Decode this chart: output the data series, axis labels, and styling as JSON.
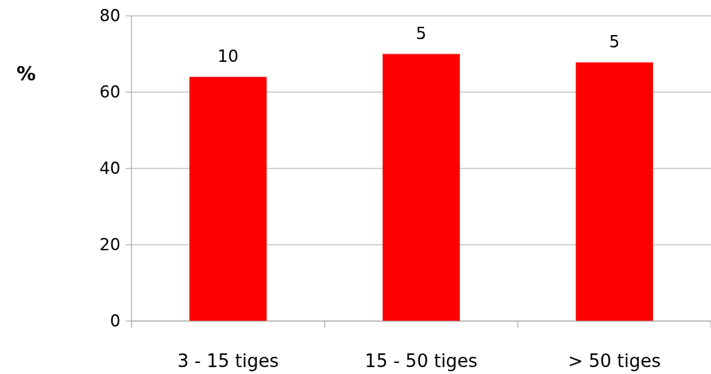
{
  "chart_data": {
    "type": "bar",
    "ylabel": "%",
    "categories": [
      "3 - 15 tiges",
      "15 - 50 tiges",
      "> 50 tiges"
    ],
    "values": [
      64,
      70,
      67.8
    ],
    "color": "#ff0000",
    "ylim": [
      0,
      80
    ],
    "yticks": [
      0,
      20,
      40,
      60,
      80
    ],
    "grid": "y",
    "annotations": [
      {
        "text": "10",
        "x": "3 - 15 tiges",
        "y": 64
      },
      {
        "text": "5",
        "x": "15 - 50 tiges",
        "y": 70
      },
      {
        "text": "5",
        "x": "> 50 tiges",
        "y": 67.8
      }
    ]
  }
}
